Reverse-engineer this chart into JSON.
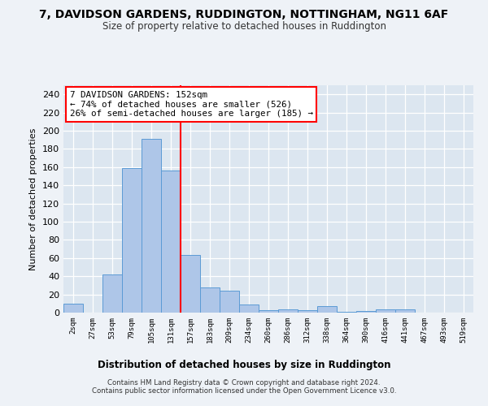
{
  "title": "7, DAVIDSON GARDENS, RUDDINGTON, NOTTINGHAM, NG11 6AF",
  "subtitle": "Size of property relative to detached houses in Ruddington",
  "xlabel": "Distribution of detached houses by size in Ruddington",
  "ylabel": "Number of detached properties",
  "bar_color": "#aec6e8",
  "bar_edge_color": "#5b9bd5",
  "axes_bg_color": "#dce6f0",
  "fig_bg_color": "#eef2f7",
  "grid_color": "#ffffff",
  "categories": [
    "2sqm",
    "27sqm",
    "53sqm",
    "79sqm",
    "105sqm",
    "131sqm",
    "157sqm",
    "183sqm",
    "209sqm",
    "234sqm",
    "260sqm",
    "286sqm",
    "312sqm",
    "338sqm",
    "364sqm",
    "390sqm",
    "416sqm",
    "441sqm",
    "467sqm",
    "493sqm",
    "519sqm"
  ],
  "values": [
    10,
    0,
    42,
    159,
    191,
    156,
    63,
    28,
    24,
    9,
    3,
    4,
    3,
    7,
    1,
    2,
    4,
    4,
    0,
    0,
    0
  ],
  "ylim": [
    0,
    250
  ],
  "yticks": [
    0,
    20,
    40,
    60,
    80,
    100,
    120,
    140,
    160,
    180,
    200,
    220,
    240
  ],
  "annotation_line1": "7 DAVIDSON GARDENS: 152sqm",
  "annotation_line2": "← 74% of detached houses are smaller (526)",
  "annotation_line3": "26% of semi-detached houses are larger (185) →",
  "vline_position": 5.5,
  "footer_line1": "Contains HM Land Registry data © Crown copyright and database right 2024.",
  "footer_line2": "Contains public sector information licensed under the Open Government Licence v3.0."
}
